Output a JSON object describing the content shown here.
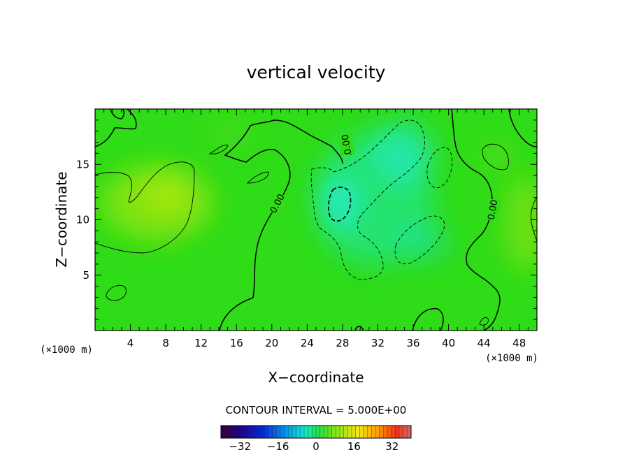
{
  "chart_data": {
    "type": "heatmap",
    "title": "vertical velocity",
    "xlabel": "X−coordinate",
    "ylabel": "Z−coordinate",
    "x_unit": "(×1000 m)",
    "y_unit": "(×1000 m)",
    "xlim": [
      0,
      50
    ],
    "ylim": [
      0,
      20
    ],
    "x_ticks": [
      4,
      8,
      12,
      16,
      20,
      24,
      28,
      32,
      36,
      40,
      44,
      48
    ],
    "x_tick_labels": [
      "4",
      "8",
      "12",
      "16",
      "20",
      "24",
      "28",
      "32",
      "36",
      "40",
      "44",
      "48"
    ],
    "y_ticks": [
      5,
      10,
      15
    ],
    "y_tick_labels": [
      "5",
      "10",
      "15"
    ],
    "contour_interval_text": "CONTOUR INTERVAL = 5.000E+00",
    "zero_contour_label": "0.00",
    "colorbar": {
      "min": -40,
      "max": 40,
      "ticks": [
        -32,
        -16,
        0,
        16,
        32
      ],
      "tick_labels": [
        "−32",
        "−16",
        "0",
        "16",
        "32"
      ]
    },
    "field_features": [
      {
        "kind": "min",
        "x": 27.5,
        "z": 11.5,
        "value": -12
      },
      {
        "kind": "min",
        "x": 34,
        "z": 16,
        "value": -8
      },
      {
        "kind": "min",
        "x": 37,
        "z": 8,
        "value": -7
      },
      {
        "kind": "max",
        "x": 7,
        "z": 11.5,
        "value": 6
      },
      {
        "kind": "max",
        "x": 45,
        "z": 16,
        "value": 3
      },
      {
        "kind": "max",
        "x": 49,
        "z": 10,
        "value": 3
      }
    ],
    "colors": {
      "background_field": "#2edc18",
      "negative": "#22e8b8",
      "positive": "#9ee60a"
    }
  }
}
